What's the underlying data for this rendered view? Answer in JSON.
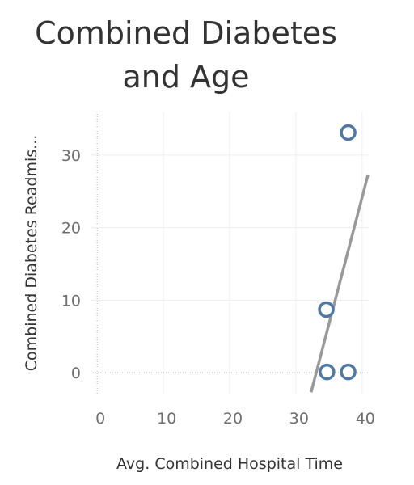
{
  "chart_data": {
    "type": "scatter",
    "title": [
      "Combined Diabetes",
      "and Age"
    ],
    "xlabel": "Avg. Combined Hospital Time",
    "ylabel": "Combined Diabetes Readmis...",
    "xlim": [
      -1,
      41
    ],
    "ylim": [
      -3,
      36
    ],
    "xticks": [
      {
        "value": 0,
        "label": "0"
      },
      {
        "value": 10,
        "label": "10"
      },
      {
        "value": 20,
        "label": "20"
      },
      {
        "value": 30,
        "label": "30"
      },
      {
        "value": 40,
        "label": "40"
      }
    ],
    "yticks": [
      {
        "value": 0,
        "label": "0"
      },
      {
        "value": 10,
        "label": "10"
      },
      {
        "value": 20,
        "label": "20"
      },
      {
        "value": 30,
        "label": "30"
      }
    ],
    "grid": true,
    "points": [
      {
        "x": 37.9,
        "y": 33.1
      },
      {
        "x": 34.6,
        "y": 8.7
      },
      {
        "x": 34.7,
        "y": 0.1
      },
      {
        "x": 37.9,
        "y": 0.1
      }
    ],
    "trend_line": {
      "x": [
        32.3,
        40.9
      ],
      "y": [
        -2.7,
        27.3
      ]
    },
    "colors": {
      "marker": "#4e79a7",
      "trend": "#999999",
      "grid": "#eeeeee",
      "zero_line": "#bbbbbb"
    }
  }
}
